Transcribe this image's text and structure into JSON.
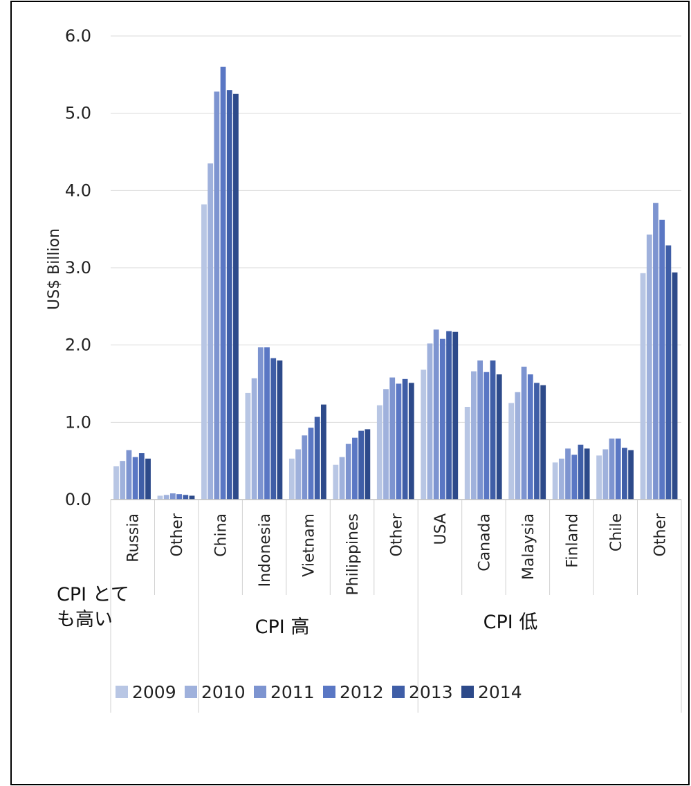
{
  "chart_data": {
    "type": "bar",
    "title": "",
    "xlabel": "",
    "ylabel": "US$ Billion",
    "ylim": [
      0,
      6
    ],
    "y_ticks": [
      "0.0",
      "1.0",
      "2.0",
      "3.0",
      "4.0",
      "5.0",
      "6.0"
    ],
    "grid": true,
    "legend_position": "bottom",
    "categories": [
      "Russia",
      "Other",
      "China",
      "Indonesia",
      "Vietnam",
      "Philippines",
      "Other",
      "USA",
      "Canada",
      "Malaysia",
      "Finland",
      "Chile",
      "Other"
    ],
    "groups": [
      {
        "label": "CPI  とても高い",
        "lines": [
          "CPI  とて",
          "も高い"
        ],
        "start": 0,
        "end": 1
      },
      {
        "label": "CPI  高",
        "lines": [
          "CPI  高"
        ],
        "start": 2,
        "end": 6
      },
      {
        "label": "CPI  低",
        "lines": [
          "CPI  低"
        ],
        "start": 7,
        "end": 12
      }
    ],
    "series": [
      {
        "name": "2009",
        "color": "#b8c6e4",
        "values": [
          0.43,
          0.05,
          3.82,
          1.38,
          0.53,
          0.45,
          1.22,
          1.68,
          1.2,
          1.25,
          0.48,
          0.57,
          2.93
        ]
      },
      {
        "name": "2010",
        "color": "#9fb1dc",
        "values": [
          0.5,
          0.06,
          4.35,
          1.57,
          0.65,
          0.55,
          1.43,
          2.02,
          1.66,
          1.39,
          0.53,
          0.65,
          3.43
        ]
      },
      {
        "name": "2011",
        "color": "#7d94d0",
        "values": [
          0.64,
          0.08,
          5.28,
          1.97,
          0.83,
          0.72,
          1.58,
          2.2,
          1.8,
          1.72,
          0.66,
          0.79,
          3.84
        ]
      },
      {
        "name": "2012",
        "color": "#5a77c4",
        "values": [
          0.55,
          0.07,
          5.6,
          1.97,
          0.93,
          0.8,
          1.5,
          2.08,
          1.65,
          1.62,
          0.58,
          0.79,
          3.62
        ]
      },
      {
        "name": "2013",
        "color": "#3f5ea7",
        "values": [
          0.6,
          0.06,
          5.3,
          1.83,
          1.07,
          0.89,
          1.56,
          2.18,
          1.8,
          1.51,
          0.71,
          0.67,
          3.29
        ]
      },
      {
        "name": "2014",
        "color": "#2d4a8a",
        "values": [
          0.53,
          0.05,
          5.25,
          1.8,
          1.23,
          0.91,
          1.51,
          2.17,
          1.62,
          1.48,
          0.66,
          0.64,
          2.94
        ]
      }
    ]
  }
}
